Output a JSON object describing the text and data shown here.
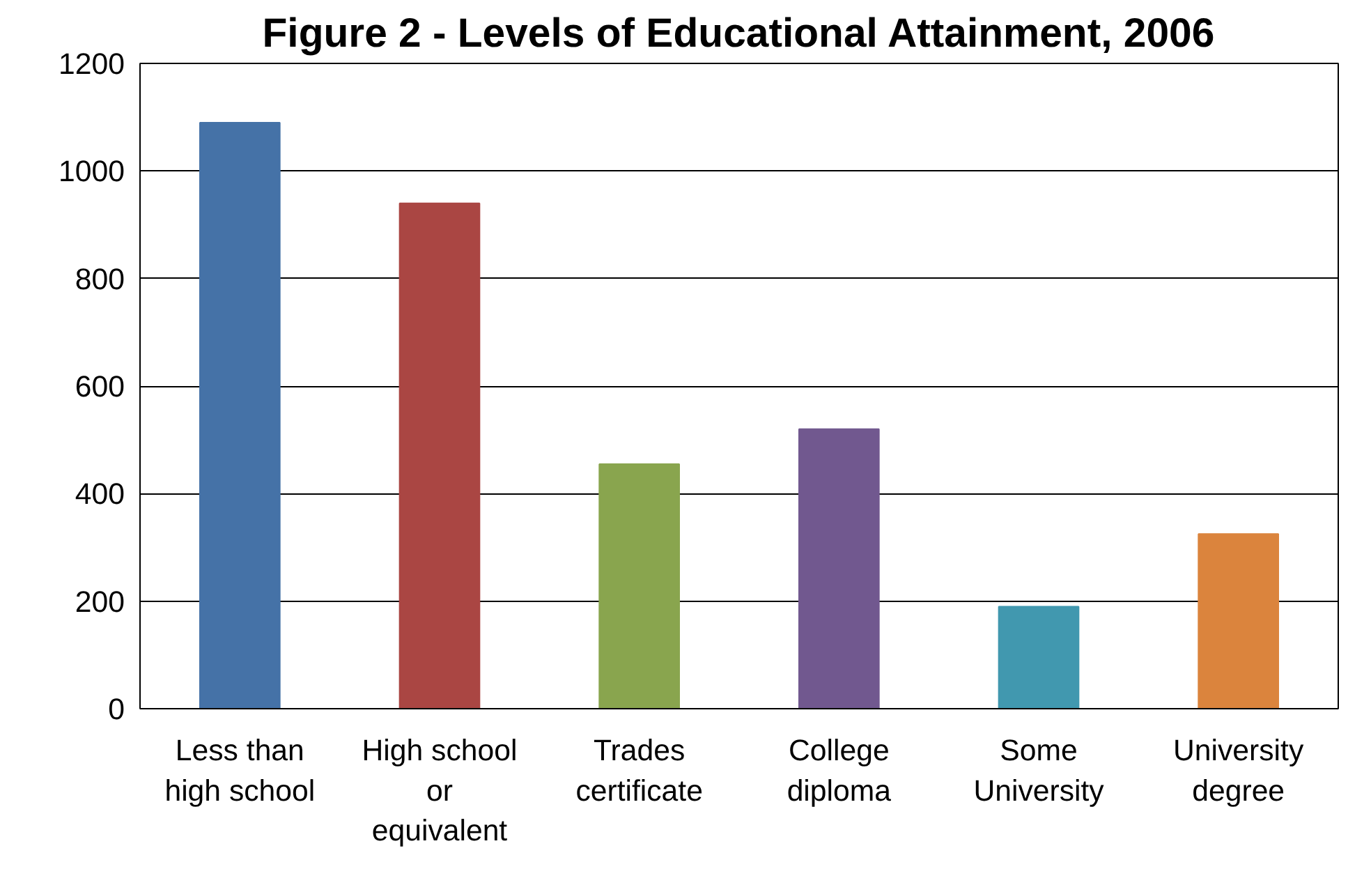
{
  "chart_data": {
    "type": "bar",
    "title": "Figure 2 - Levels of Educational Attainment, 2006",
    "categories": [
      "Less than high school",
      "High school or equivalent",
      "Trades certificate",
      "College diploma",
      "Some University",
      "University degree"
    ],
    "values": [
      1090,
      940,
      455,
      520,
      190,
      325
    ],
    "colors": [
      "#4572a7",
      "#aa4643",
      "#89a54e",
      "#71588f",
      "#4198af",
      "#db843d"
    ],
    "ylim": [
      0,
      1200
    ],
    "yticks": [
      0,
      200,
      400,
      600,
      800,
      1000,
      1200
    ],
    "grid": "y"
  }
}
